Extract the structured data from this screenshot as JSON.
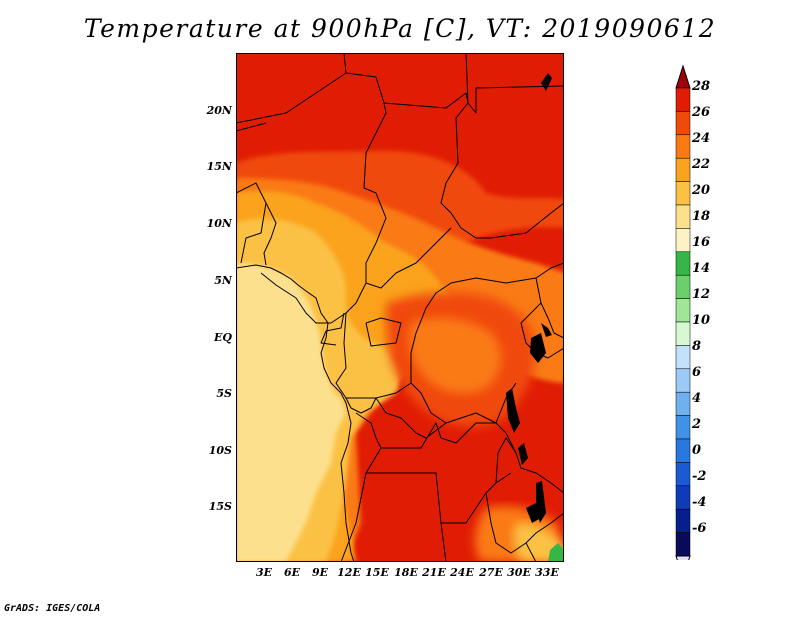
{
  "title": "Temperature at 900hPa [C], VT: 2019090612",
  "footer": "GrADS: IGES/COLA",
  "map": {
    "lat_labels": [
      "20N",
      "15N",
      "10N",
      "5N",
      "EQ",
      "5S",
      "10S",
      "15S"
    ],
    "lon_labels": [
      "3E",
      "6E",
      "9E",
      "12E",
      "15E",
      "18E",
      "21E",
      "24E",
      "27E",
      "30E",
      "33E"
    ],
    "lat_range": [
      -20,
      24
    ],
    "lon_range": [
      0,
      34.5
    ]
  },
  "colorbar": {
    "labels": [
      "28",
      "26",
      "24",
      "22",
      "20",
      "18",
      "16",
      "14",
      "12",
      "10",
      "8",
      "6",
      "4",
      "2",
      "0",
      "-2",
      "-4",
      "-6"
    ],
    "colors": [
      "#a0000a",
      "#e11c05",
      "#f04a0a",
      "#fa7a14",
      "#fba31f",
      "#fbc145",
      "#fde08e",
      "#fdf2c4",
      "#37b648",
      "#6cd06a",
      "#9fe696",
      "#d6f8d2",
      "#c4e1fb",
      "#9ccaf6",
      "#6fb0ee",
      "#4192e6",
      "#2a77de",
      "#1c5ad2",
      "#0f3ab8",
      "#061f8c",
      "#0a0a5a",
      "#e3e1f5"
    ]
  }
}
